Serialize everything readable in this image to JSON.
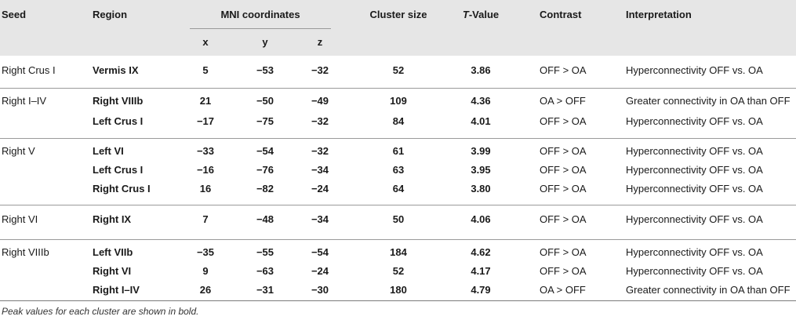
{
  "headers": {
    "seed": "Seed",
    "region": "Region",
    "mni": "MNI coordinates",
    "x": "x",
    "y": "y",
    "z": "z",
    "cluster": "Cluster size",
    "tvalue_t": "T",
    "tvalue_rest": "-Value",
    "contrast": "Contrast",
    "interpretation": "Interpretation"
  },
  "rows": [
    {
      "seed": "Right Crus I",
      "region": "Vermis IX",
      "x": "5",
      "y": "−53",
      "z": "−32",
      "cluster": "52",
      "t": "3.86",
      "contrast": "OFF > OA",
      "interp": "Hyperconnectivity OFF vs. OA"
    },
    {
      "seed": "Right I–IV",
      "region": "Right VIIIb",
      "x": "21",
      "y": "−50",
      "z": "−49",
      "cluster": "109",
      "t": "4.36",
      "contrast": "OA > OFF",
      "interp": "Greater connectivity in OA than OFF"
    },
    {
      "seed": "",
      "region": "Left Crus I",
      "x": "−17",
      "y": "−75",
      "z": "−32",
      "cluster": "84",
      "t": "4.01",
      "contrast": "OFF > OA",
      "interp": "Hyperconnectivity OFF vs. OA"
    },
    {
      "seed": "Right V",
      "region": "Left VI",
      "x": "−33",
      "y": "−54",
      "z": "−32",
      "cluster": "61",
      "t": "3.99",
      "contrast": "OFF > OA",
      "interp": "Hyperconnectivity OFF vs. OA"
    },
    {
      "seed": "",
      "region": "Left Crus I",
      "x": "−16",
      "y": "−76",
      "z": "−34",
      "cluster": "63",
      "t": "3.95",
      "contrast": "OFF > OA",
      "interp": "Hyperconnectivity OFF vs. OA"
    },
    {
      "seed": "",
      "region": "Right Crus I",
      "x": "16",
      "y": "−82",
      "z": "−24",
      "cluster": "64",
      "t": "3.80",
      "contrast": "OFF > OA",
      "interp": "Hyperconnectivity OFF vs. OA"
    },
    {
      "seed": "Right VI",
      "region": "Right IX",
      "x": "7",
      "y": "−48",
      "z": "−34",
      "cluster": "50",
      "t": "4.06",
      "contrast": "OFF > OA",
      "interp": "Hyperconnectivity OFF vs. OA"
    },
    {
      "seed": "Right VIIIb",
      "region": "Left VIIb",
      "x": "−35",
      "y": "−55",
      "z": "−54",
      "cluster": "184",
      "t": "4.62",
      "contrast": "OFF > OA",
      "interp": "Hyperconnectivity OFF vs. OA"
    },
    {
      "seed": "",
      "region": "Right VI",
      "x": "9",
      "y": "−63",
      "z": "−24",
      "cluster": "52",
      "t": "4.17",
      "contrast": "OFF > OA",
      "interp": "Hyperconnectivity OFF vs. OA"
    },
    {
      "seed": "",
      "region": "Right I–IV",
      "x": "26",
      "y": "−31",
      "z": "−30",
      "cluster": "180",
      "t": "4.79",
      "contrast": "OA > OFF",
      "interp": "Greater connectivity in OA than OFF"
    }
  ],
  "footnote": "Peak values for each cluster are shown in bold."
}
